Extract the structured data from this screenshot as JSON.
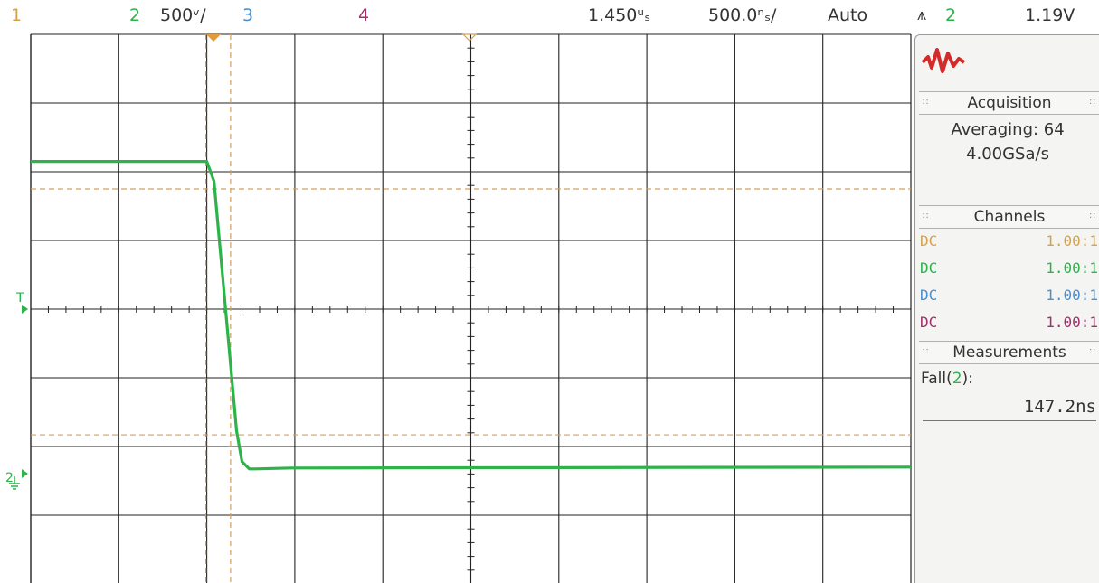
{
  "colors": {
    "ch1": "#d4a24c",
    "ch2": "#2db34a",
    "ch3": "#4a8fcf",
    "ch4": "#a0306a",
    "grid": "#222222",
    "cursor": "#d2a060",
    "logo": "#d42a2a"
  },
  "topbar": {
    "ch1_label": "1",
    "ch2_label": "2",
    "ch2_scale": "500ᵛ/",
    "ch3_label": "3",
    "ch4_label": "4",
    "time_delay": "1.450ᵘₛ",
    "time_scale": "500.0ⁿₛ/",
    "trigger_mode": "Auto",
    "trigger_icon": "trigger-edge-icon",
    "trigger_channel": "2",
    "trigger_level": "1.19V"
  },
  "markers": {
    "trigger_level_marker": "T",
    "ch2_ground_marker": "2"
  },
  "sidebar": {
    "logo_icon": "waveform-logo-icon",
    "acquisition": {
      "title": "Acquisition",
      "mode": "Averaging: 64",
      "sample_rate": "4.00GSa/s"
    },
    "channels": {
      "title": "Channels",
      "rows": [
        {
          "coupling": "DC",
          "ratio": "1.00:1"
        },
        {
          "coupling": "DC",
          "ratio": "1.00:1"
        },
        {
          "coupling": "DC",
          "ratio": "1.00:1"
        },
        {
          "coupling": "DC",
          "ratio": "1.00:1"
        }
      ]
    },
    "measurements": {
      "title": "Measurements",
      "label_prefix": "Fall(",
      "label_channel": "2",
      "label_suffix": "):",
      "value": "147.2ns"
    }
  },
  "waveform": {
    "channel": 2,
    "high_div": 2.15,
    "low_div": -2.3,
    "fall_start_div": -3.0,
    "fall_end_div": -2.6,
    "settle_div": -2.45
  }
}
